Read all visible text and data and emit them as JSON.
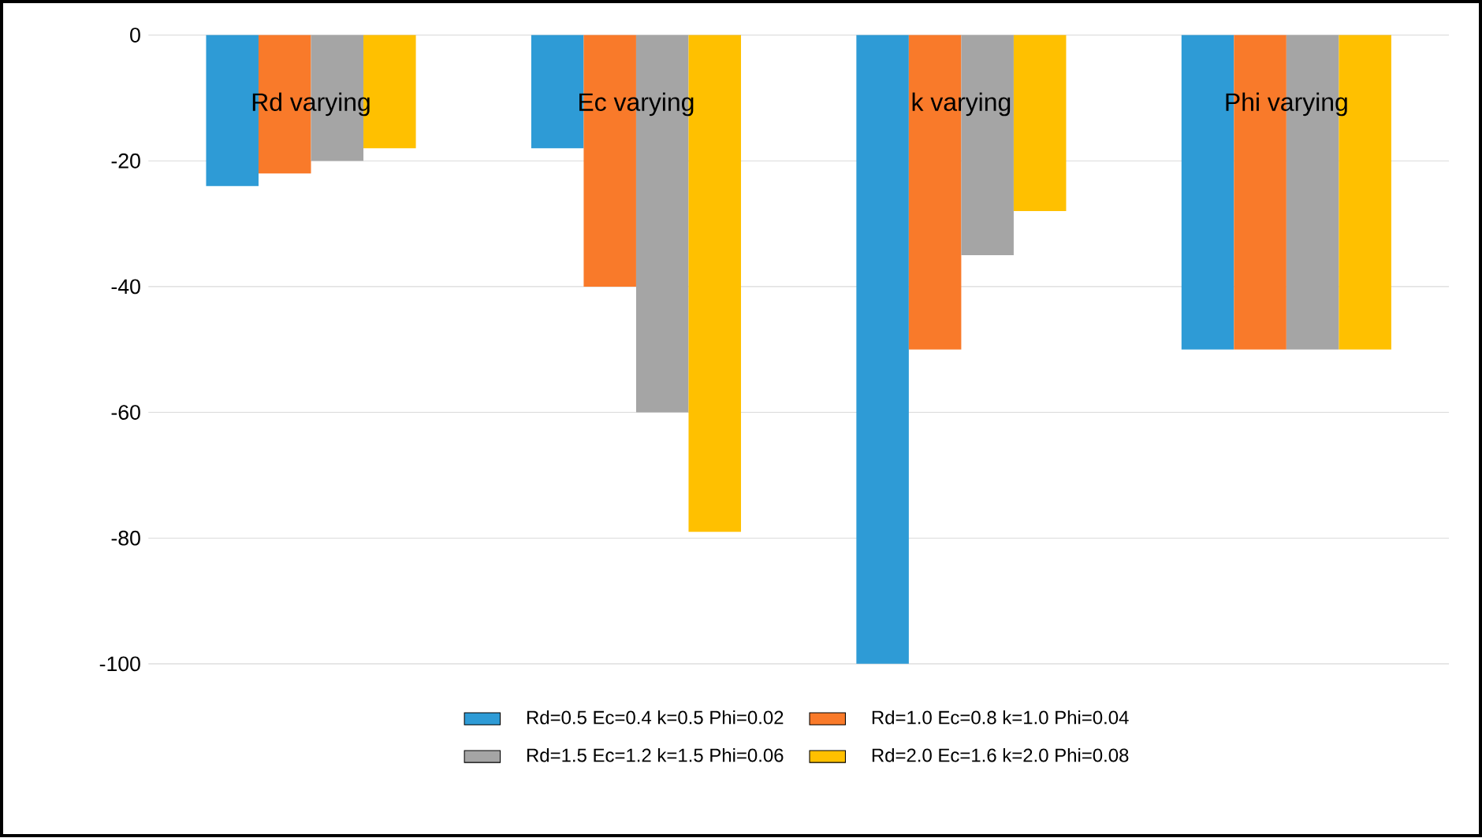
{
  "chart_data": {
    "type": "bar",
    "categories": [
      "Rd varying",
      "Ec varying",
      "k varying",
      "Phi varying"
    ],
    "series": [
      {
        "name": "Rd=0.5 Ec=0.4 k=0.5 Phi=0.02",
        "color": "#2e9bd6",
        "values": [
          -24,
          -18,
          -100,
          -50
        ]
      },
      {
        "name": "Rd=1.0 Ec=0.8 k=1.0 Phi=0.04",
        "color": "#f97a2a",
        "values": [
          -22,
          -40,
          -50,
          -50
        ]
      },
      {
        "name": "Rd=1.5 Ec=1.2 k=1.5 Phi=0.06",
        "color": "#a5a5a5",
        "values": [
          -20,
          -60,
          -35,
          -50
        ]
      },
      {
        "name": "Rd=2.0 Ec=1.6 k=2.0 Phi=0.08",
        "color": "#ffc000",
        "values": [
          -18,
          -79,
          -28,
          -50
        ]
      }
    ],
    "ylim": [
      -100,
      0
    ],
    "yticks": [
      -100,
      -80,
      -60,
      -40,
      -20,
      0
    ],
    "grid": "y",
    "legend": "bottom"
  }
}
